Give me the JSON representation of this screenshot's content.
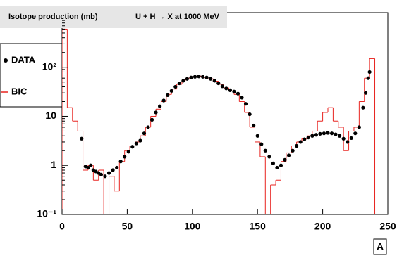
{
  "chart_data": {
    "type": "scatter",
    "title": "Isotope production (mb)",
    "subtitle": "U + H → X at 1000 MeV",
    "xlabel": "A",
    "xlim": [
      0,
      250
    ],
    "xticks": [
      0,
      50,
      100,
      150,
      200,
      250
    ],
    "ylim": [
      0.1,
      1300
    ],
    "yticks": [
      {
        "value": 0.1,
        "label": "10⁻¹"
      },
      1,
      10,
      {
        "value": 100,
        "label": "10²"
      }
    ],
    "log_y": true,
    "grid": false,
    "legend": "left",
    "series": [
      {
        "name": "DATA",
        "type": "scatter",
        "color": "#000000",
        "x": [
          15,
          18,
          20,
          22,
          24,
          26,
          28,
          30,
          33,
          36,
          39,
          42,
          45,
          48,
          51,
          54,
          57,
          60,
          63,
          66,
          69,
          72,
          75,
          78,
          81,
          84,
          87,
          90,
          93,
          96,
          99,
          102,
          105,
          108,
          111,
          114,
          117,
          120,
          123,
          126,
          129,
          132,
          135,
          138,
          141,
          144,
          147,
          150,
          153,
          156,
          159,
          162,
          165,
          168,
          171,
          174,
          177,
          180,
          183,
          186,
          189,
          192,
          195,
          198,
          201,
          204,
          207,
          210,
          213,
          216,
          219,
          222,
          225,
          228,
          231,
          233,
          235,
          236
        ],
        "values": [
          3.5,
          0.95,
          0.9,
          1.0,
          0.8,
          0.75,
          0.7,
          0.65,
          0.6,
          0.7,
          0.8,
          0.9,
          1.2,
          1.5,
          1.9,
          2.4,
          2.8,
          3.2,
          4.5,
          6,
          8.5,
          12,
          16,
          21,
          27,
          33,
          40,
          47,
          53,
          58,
          62,
          64,
          65,
          64,
          62,
          58,
          53,
          47,
          41,
          37,
          34,
          32,
          29,
          24,
          18,
          11,
          6.5,
          4,
          2.7,
          2,
          1.5,
          1.1,
          0.9,
          1.0,
          1.3,
          1.6,
          2.0,
          2.5,
          3.0,
          3.4,
          3.7,
          4.0,
          4.2,
          4.4,
          4.5,
          4.6,
          4.5,
          4.3,
          4.0,
          3.5,
          3.0,
          3.6,
          4.5,
          6,
          15,
          30,
          60,
          80
        ]
      },
      {
        "name": "BIC",
        "type": "step",
        "color": "#e8231f",
        "bins": [
          0,
          4,
          8,
          12,
          16,
          20,
          24,
          28,
          32,
          36,
          40,
          44,
          48,
          52,
          56,
          60,
          64,
          68,
          72,
          76,
          80,
          84,
          88,
          92,
          96,
          100,
          104,
          108,
          112,
          116,
          120,
          124,
          128,
          132,
          136,
          140,
          144,
          148,
          152,
          156,
          160,
          164,
          168,
          172,
          176,
          180,
          184,
          188,
          192,
          196,
          200,
          204,
          208,
          212,
          216,
          220,
          224,
          228,
          232,
          236,
          240
        ],
        "values": [
          600,
          15,
          8,
          5,
          0.8,
          1,
          0.5,
          0.8,
          0.1,
          0.6,
          0.3,
          1.2,
          2,
          2.5,
          3,
          4,
          6,
          10,
          14,
          20,
          28,
          36,
          45,
          55,
          60,
          65,
          66,
          62,
          58,
          52,
          45,
          38,
          33,
          28,
          20,
          12,
          6,
          3,
          1.5,
          0.1,
          0.4,
          0.5,
          1.2,
          1.8,
          2.5,
          3,
          3.5,
          4,
          5,
          8,
          12,
          15,
          8,
          6,
          2,
          5,
          6,
          20,
          60,
          150
        ]
      }
    ]
  }
}
